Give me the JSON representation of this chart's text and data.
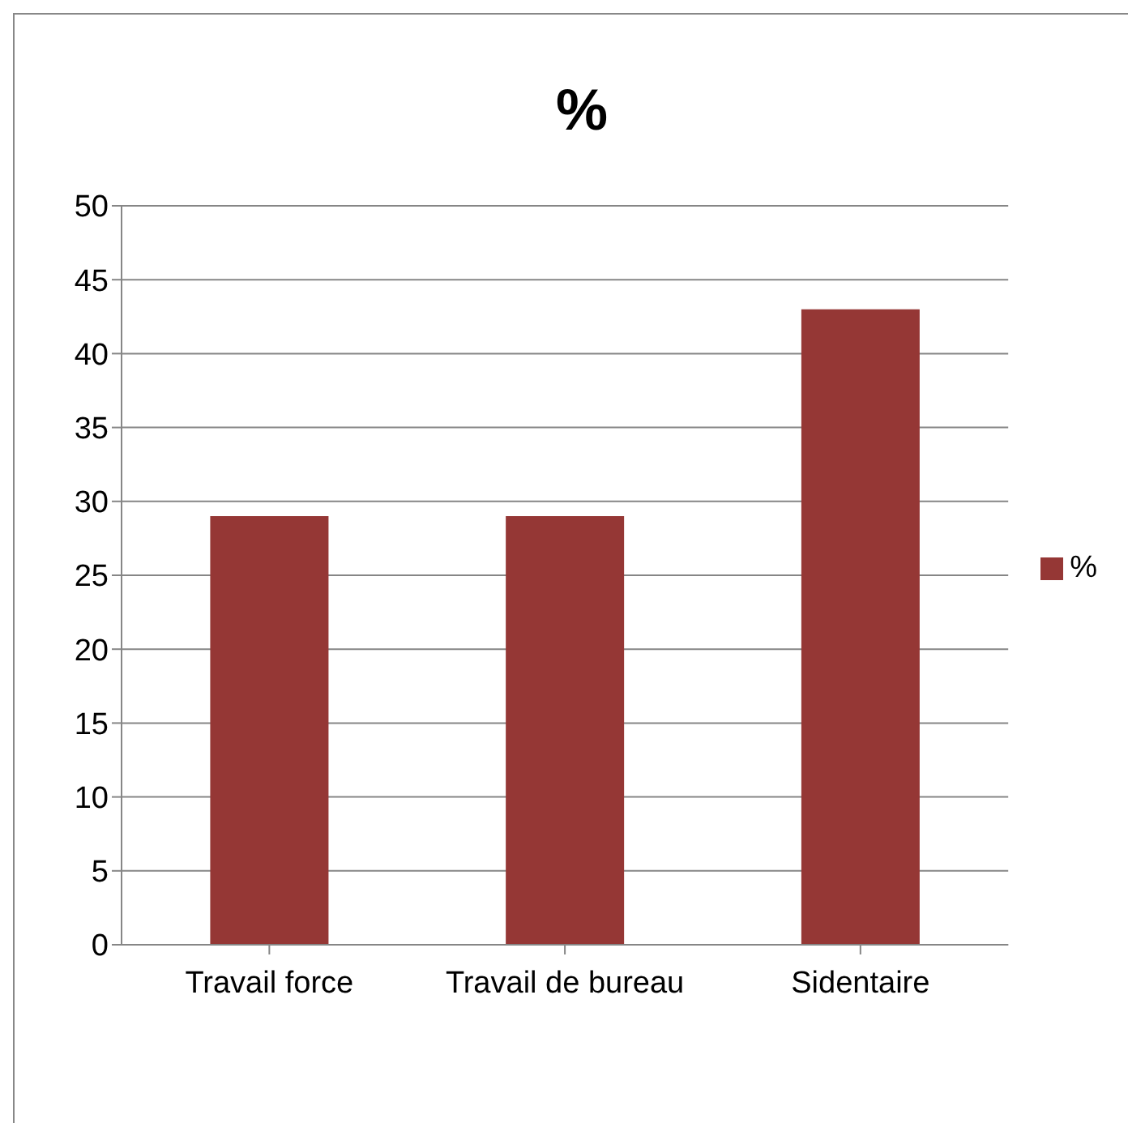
{
  "chart_data": {
    "type": "bar",
    "title": "%",
    "categories": [
      "Travail force",
      "Travail de bureau",
      "Sidentaire"
    ],
    "series": [
      {
        "name": "%",
        "color": "#953735",
        "values": [
          29,
          29,
          43
        ]
      }
    ],
    "ylim": [
      0,
      50
    ],
    "yticks": [
      0,
      5,
      10,
      15,
      20,
      25,
      30,
      35,
      40,
      45,
      50
    ],
    "grid": "y",
    "legend": "right"
  }
}
